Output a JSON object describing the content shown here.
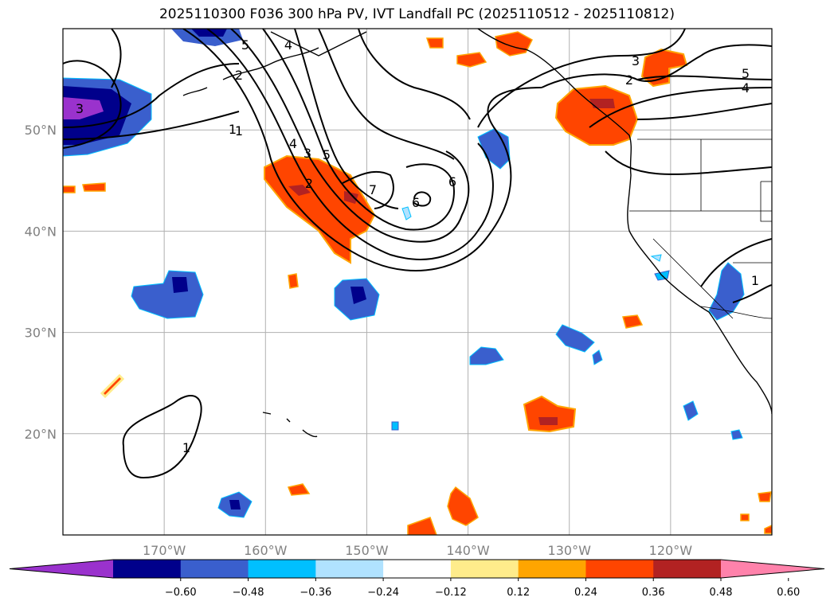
{
  "title": "2025110300 F036 300 hPa PV, IVT Landfall PC (2025110512 - 2025110812)",
  "map": {
    "lon_range": [
      -180,
      -110
    ],
    "lat_range": [
      10,
      60
    ],
    "lat_ticks": [
      {
        "value": 50,
        "label": "50°N"
      },
      {
        "value": 40,
        "label": "40°N"
      },
      {
        "value": 30,
        "label": "30°N"
      },
      {
        "value": 20,
        "label": "20°N"
      }
    ],
    "lon_ticks": [
      {
        "value": -170,
        "label": "170°W"
      },
      {
        "value": -160,
        "label": "160°W"
      },
      {
        "value": -150,
        "label": "150°W"
      },
      {
        "value": -140,
        "label": "140°W"
      },
      {
        "value": -130,
        "label": "130°W"
      },
      {
        "value": -120,
        "label": "120°W"
      }
    ],
    "contour_labels": [
      "5",
      "4",
      "3",
      "2",
      "1",
      "5",
      "4",
      "3",
      "2",
      "1",
      "7",
      "6",
      "6",
      "3",
      "2",
      "5",
      "4",
      "1",
      "1"
    ]
  },
  "colorbar": {
    "ticks": [
      "−0.60",
      "−0.48",
      "−0.36",
      "−0.24",
      "−0.12",
      "0.12",
      "0.24",
      "0.36",
      "0.48",
      "0.60"
    ],
    "colors": [
      "#9a32cd",
      "#00008b",
      "#3a5fcd",
      "#00bfff",
      "#b0e2ff",
      "#ffffff",
      "#ffec8b",
      "#ffa500",
      "#ff4500",
      "#b22222",
      "#ff82ab"
    ]
  }
}
